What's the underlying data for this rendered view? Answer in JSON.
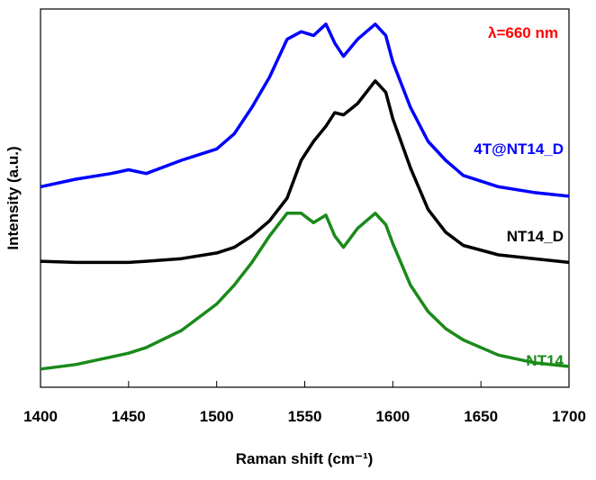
{
  "chart_data": {
    "type": "line",
    "annotation": "λ=660 nm",
    "xlabel": "Raman shift (cm⁻¹)",
    "ylabel": "Intensity (a.u.)",
    "x": [
      1400,
      1420,
      1440,
      1450,
      1460,
      1480,
      1500,
      1510,
      1520,
      1530,
      1540,
      1548,
      1555,
      1562,
      1567,
      1572,
      1580,
      1590,
      1596,
      1600,
      1610,
      1620,
      1630,
      1640,
      1660,
      1680,
      1700
    ],
    "series": [
      {
        "name": "4T@NT14_D",
        "color": "#0000ff",
        "values": [
          53,
          55,
          56.5,
          57.5,
          56.5,
          60,
          63,
          67,
          74,
          82,
          92,
          94,
          93,
          96,
          91,
          87.5,
          92,
          96,
          93,
          86,
          74,
          65,
          60,
          56,
          53,
          51.5,
          50.5
        ]
      },
      {
        "name": "NT14_D",
        "color": "#000000",
        "values": [
          33.3,
          33,
          33,
          33,
          33.3,
          34,
          35.5,
          37,
          40,
          44,
          50,
          60,
          65,
          69,
          72.6,
          72,
          75,
          81,
          78,
          71,
          58,
          47,
          41,
          37.5,
          35,
          34,
          33
        ]
      },
      {
        "name": "NT14",
        "color": "#1a8a1a",
        "values": [
          4.8,
          6,
          8,
          9,
          10.5,
          15,
          22,
          27,
          33,
          40,
          46,
          46,
          43.5,
          45.5,
          40,
          37,
          42,
          46,
          43,
          38,
          27,
          20,
          15.5,
          12.5,
          8.5,
          6.5,
          5.5
        ]
      }
    ],
    "xlim": [
      1400,
      1700
    ],
    "xticks": [
      1400,
      1450,
      1500,
      1550,
      1600,
      1650,
      1700
    ],
    "ylim": [
      0,
      100
    ]
  }
}
